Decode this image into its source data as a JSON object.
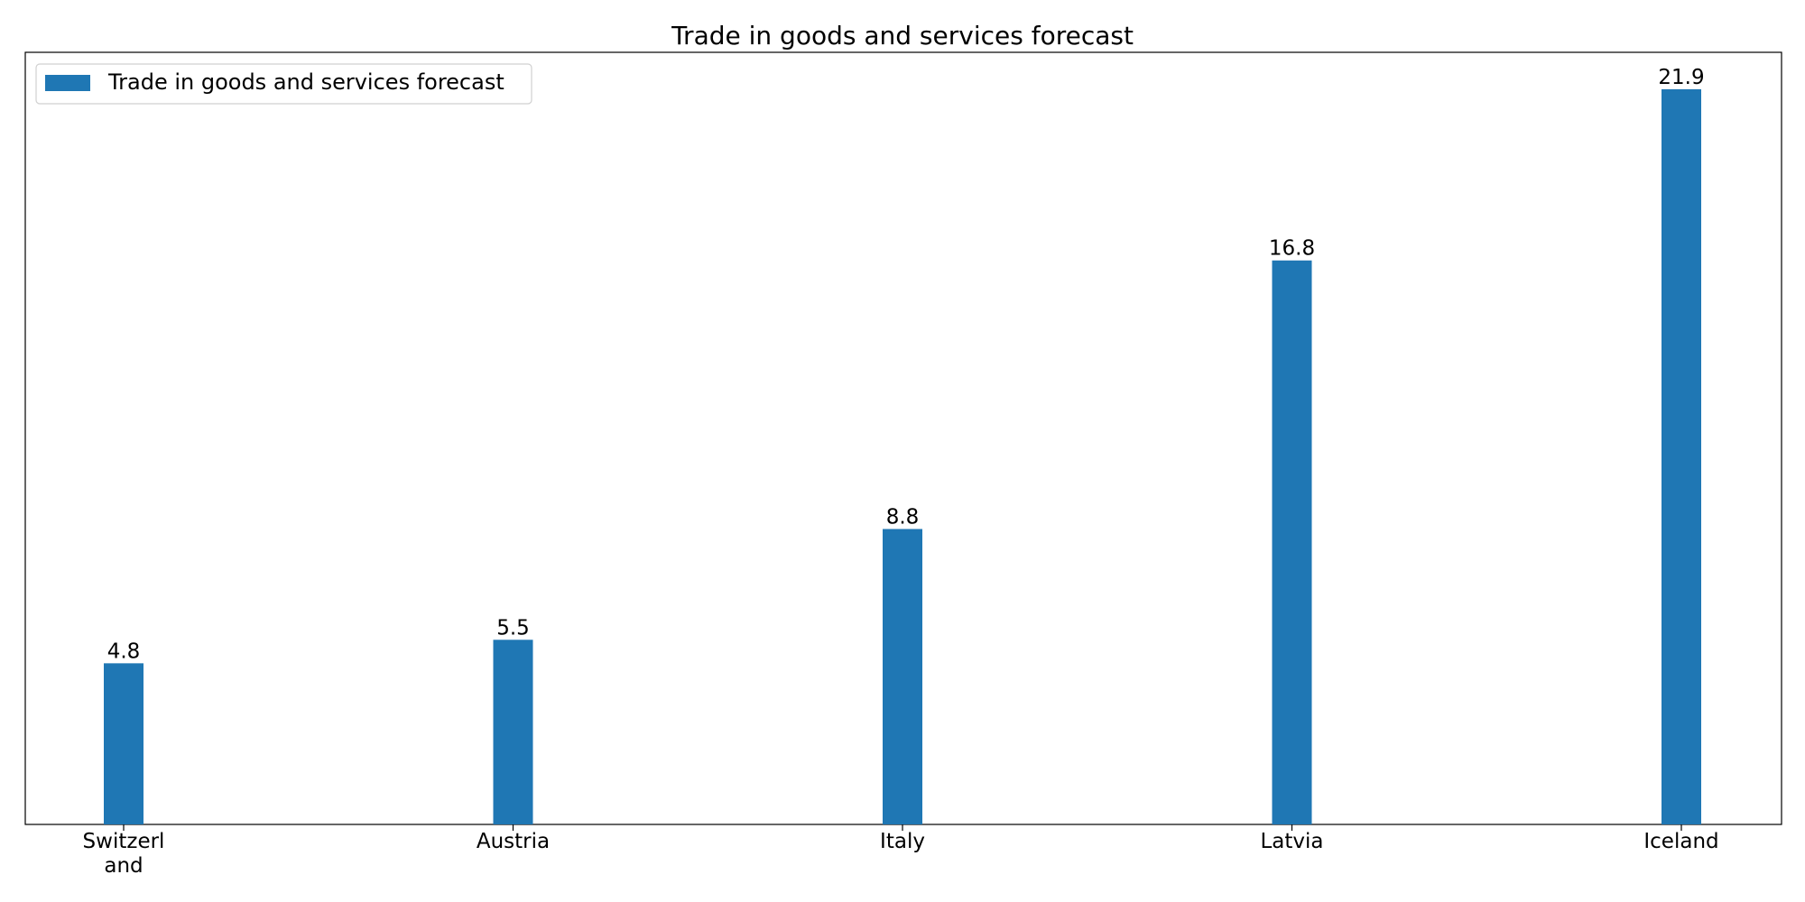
{
  "chart_data": {
    "type": "bar",
    "title": "Trade in goods and services forecast",
    "xlabel": "",
    "ylabel": "",
    "categories": [
      [
        "Switzerl",
        "and"
      ],
      [
        "Austria"
      ],
      [
        "Italy"
      ],
      [
        "Latvia"
      ],
      [
        "Iceland"
      ]
    ],
    "series": [
      {
        "name": "Trade in goods and services forecast",
        "values": [
          4.8,
          5.5,
          8.8,
          16.8,
          21.9
        ],
        "value_labels": [
          "4.8",
          "5.5",
          "8.8",
          "16.8",
          "21.9"
        ],
        "color": "#1f77b4"
      }
    ],
    "ylim": [
      0,
      23
    ],
    "y_axis_visible": false,
    "grid": false,
    "legend": "top-left"
  }
}
